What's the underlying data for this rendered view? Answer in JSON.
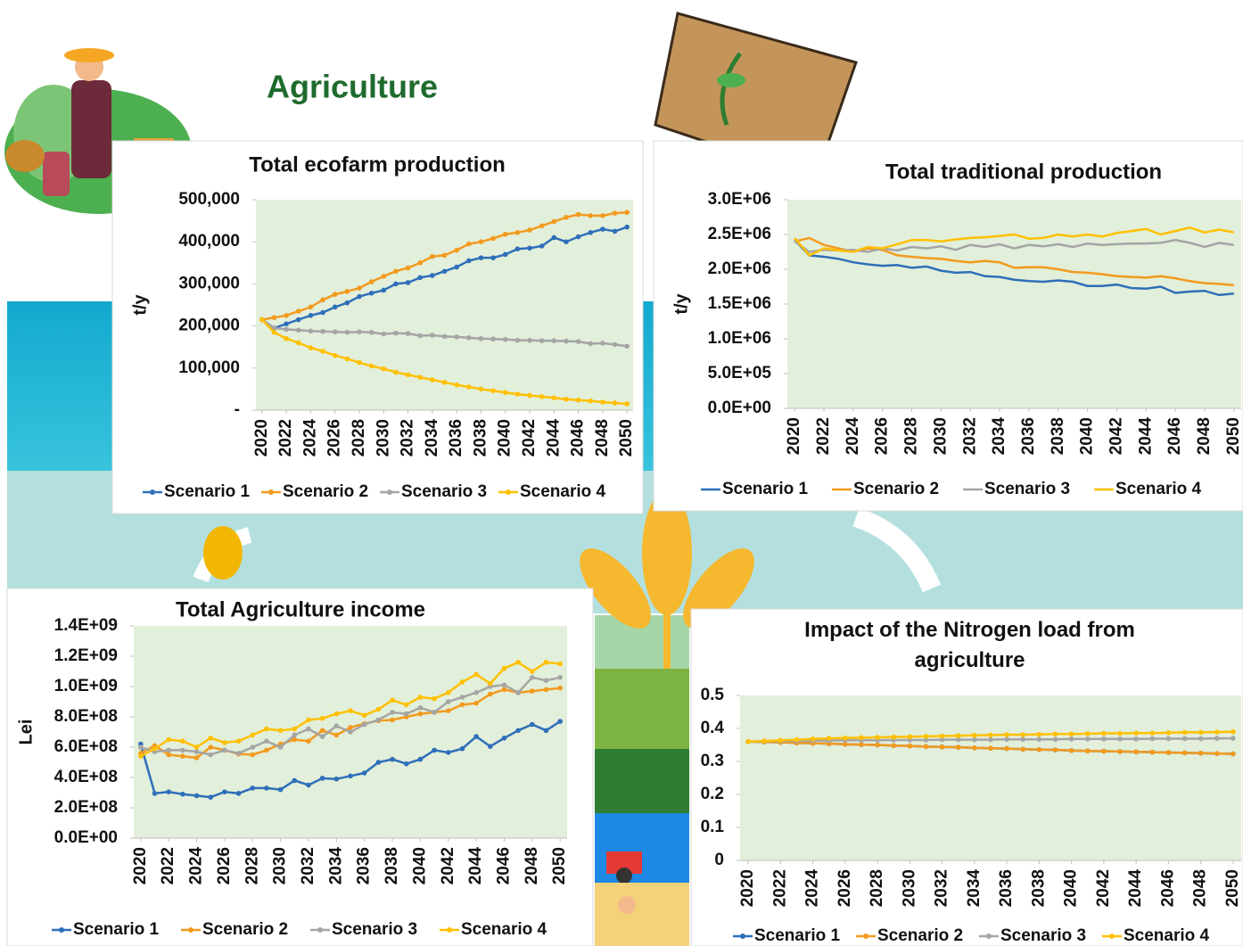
{
  "page_title": "Agriculture",
  "chart_data": [
    {
      "type": "line",
      "title": "Total ecofarm production",
      "y_label": "t/y",
      "markers": true,
      "grid": false,
      "legend": "bottom",
      "x": [
        2020,
        2021,
        2022,
        2023,
        2024,
        2025,
        2026,
        2027,
        2028,
        2029,
        2030,
        2031,
        2032,
        2033,
        2034,
        2035,
        2036,
        2037,
        2038,
        2039,
        2040,
        2041,
        2042,
        2043,
        2044,
        2045,
        2046,
        2047,
        2048,
        2049,
        2050
      ],
      "xlim": [
        2020,
        2050
      ],
      "xticks": [
        2020,
        2022,
        2024,
        2026,
        2028,
        2030,
        2032,
        2034,
        2036,
        2038,
        2040,
        2042,
        2044,
        2046,
        2048,
        2050
      ],
      "ylim": [
        0,
        500000
      ],
      "yticks": [
        {
          "value": 0,
          "label": "-"
        },
        {
          "value": 100000,
          "label": "100,000"
        },
        {
          "value": 200000,
          "label": "200,000"
        },
        {
          "value": 300000,
          "label": "300,000"
        },
        {
          "value": 400000,
          "label": "400,000"
        },
        {
          "value": 500000,
          "label": "500,000"
        }
      ],
      "series": [
        {
          "name": "Scenario 1",
          "color": "#2e6fba",
          "values": [
            215000,
            195000,
            205000,
            215000,
            225000,
            232000,
            245000,
            255000,
            270000,
            278000,
            285000,
            300000,
            303000,
            315000,
            320000,
            330000,
            340000,
            355000,
            362000,
            362000,
            370000,
            383000,
            385000,
            390000,
            410000,
            400000,
            412000,
            422000,
            430000,
            425000,
            435000
          ]
        },
        {
          "name": "Scenario 2",
          "color": "#f39a1e",
          "values": [
            215000,
            220000,
            225000,
            235000,
            245000,
            262000,
            275000,
            282000,
            290000,
            305000,
            318000,
            330000,
            338000,
            350000,
            365000,
            368000,
            380000,
            395000,
            400000,
            408000,
            418000,
            422000,
            428000,
            438000,
            448000,
            458000,
            465000,
            462000,
            462000,
            468000,
            470000
          ]
        },
        {
          "name": "Scenario 3",
          "color": "#a5a5a5",
          "values": [
            215000,
            195000,
            192000,
            190000,
            188000,
            187000,
            186000,
            185000,
            186000,
            185000,
            181000,
            183000,
            182000,
            177000,
            178000,
            175000,
            174000,
            172000,
            170000,
            169000,
            168000,
            166000,
            166000,
            165000,
            165000,
            164000,
            163000,
            158000,
            159000,
            156000,
            152000
          ]
        },
        {
          "name": "Scenario 4",
          "color": "#ffc000",
          "values": [
            215000,
            185000,
            170000,
            160000,
            148000,
            140000,
            130000,
            122000,
            113000,
            105000,
            98000,
            90000,
            84000,
            78000,
            72000,
            66000,
            60000,
            55000,
            50000,
            46000,
            42000,
            38000,
            35000,
            32000,
            29000,
            26000,
            24000,
            22000,
            19000,
            17000,
            15000
          ]
        }
      ]
    },
    {
      "type": "line",
      "title": "Total traditional production",
      "y_label": "t/y",
      "markers": false,
      "grid": false,
      "legend": "bottom",
      "x": [
        2020,
        2021,
        2022,
        2023,
        2024,
        2025,
        2026,
        2027,
        2028,
        2029,
        2030,
        2031,
        2032,
        2033,
        2034,
        2035,
        2036,
        2037,
        2038,
        2039,
        2040,
        2041,
        2042,
        2043,
        2044,
        2045,
        2046,
        2047,
        2048,
        2049,
        2050
      ],
      "xlim": [
        2020,
        2050
      ],
      "xticks": [
        2020,
        2022,
        2024,
        2026,
        2028,
        2030,
        2032,
        2034,
        2036,
        2038,
        2040,
        2042,
        2044,
        2046,
        2048,
        2050
      ],
      "ylim": [
        0,
        3000000
      ],
      "yticks": [
        {
          "value": 0,
          "label": "0.0E+00"
        },
        {
          "value": 500000,
          "label": "5.0E+05"
        },
        {
          "value": 1000000,
          "label": "1.0E+06"
        },
        {
          "value": 1500000,
          "label": "1.5E+06"
        },
        {
          "value": 2000000,
          "label": "2.0E+06"
        },
        {
          "value": 2500000,
          "label": "2.5E+06"
        },
        {
          "value": 3000000,
          "label": "3.0E+06"
        }
      ],
      "series": [
        {
          "name": "Scenario 1",
          "color": "#2e6fba",
          "values": [
            2420000,
            2200000,
            2180000,
            2150000,
            2100000,
            2070000,
            2050000,
            2060000,
            2020000,
            2040000,
            1980000,
            1950000,
            1960000,
            1900000,
            1890000,
            1850000,
            1830000,
            1820000,
            1840000,
            1820000,
            1760000,
            1760000,
            1780000,
            1730000,
            1720000,
            1750000,
            1660000,
            1680000,
            1690000,
            1630000,
            1650000
          ]
        },
        {
          "name": "Scenario 2",
          "color": "#f39a1e",
          "values": [
            2400000,
            2450000,
            2350000,
            2300000,
            2250000,
            2300000,
            2280000,
            2200000,
            2180000,
            2160000,
            2150000,
            2120000,
            2100000,
            2120000,
            2100000,
            2020000,
            2030000,
            2030000,
            2000000,
            1960000,
            1950000,
            1930000,
            1900000,
            1890000,
            1880000,
            1900000,
            1870000,
            1830000,
            1800000,
            1790000,
            1770000
          ]
        },
        {
          "name": "Scenario 3",
          "color": "#a5a5a5",
          "values": [
            2400000,
            2250000,
            2280000,
            2270000,
            2280000,
            2250000,
            2300000,
            2270000,
            2320000,
            2300000,
            2330000,
            2280000,
            2350000,
            2320000,
            2360000,
            2300000,
            2350000,
            2330000,
            2360000,
            2320000,
            2370000,
            2350000,
            2360000,
            2370000,
            2370000,
            2380000,
            2420000,
            2380000,
            2320000,
            2380000,
            2350000
          ]
        },
        {
          "name": "Scenario 4",
          "color": "#ffc000",
          "values": [
            2450000,
            2200000,
            2300000,
            2270000,
            2250000,
            2320000,
            2300000,
            2360000,
            2420000,
            2420000,
            2400000,
            2430000,
            2450000,
            2460000,
            2480000,
            2500000,
            2440000,
            2450000,
            2500000,
            2470000,
            2500000,
            2470000,
            2520000,
            2550000,
            2580000,
            2500000,
            2550000,
            2600000,
            2530000,
            2570000,
            2530000
          ]
        }
      ]
    },
    {
      "type": "line",
      "title": "Total Agriculture income",
      "y_label": "Lei",
      "markers": true,
      "grid": false,
      "legend": "bottom",
      "x": [
        2020,
        2021,
        2022,
        2023,
        2024,
        2025,
        2026,
        2027,
        2028,
        2029,
        2030,
        2031,
        2032,
        2033,
        2034,
        2035,
        2036,
        2037,
        2038,
        2039,
        2040,
        2041,
        2042,
        2043,
        2044,
        2045,
        2046,
        2047,
        2048,
        2049,
        2050
      ],
      "xlim": [
        2020,
        2050
      ],
      "xticks": [
        2020,
        2022,
        2024,
        2026,
        2028,
        2030,
        2032,
        2034,
        2036,
        2038,
        2040,
        2042,
        2044,
        2046,
        2048,
        2050
      ],
      "ylim": [
        0,
        1400000000
      ],
      "yticks": [
        {
          "value": 0,
          "label": "0.0E+00"
        },
        {
          "value": 200000000,
          "label": "2.0E+08"
        },
        {
          "value": 400000000,
          "label": "4.0E+08"
        },
        {
          "value": 600000000,
          "label": "6.0E+08"
        },
        {
          "value": 800000000,
          "label": "8.0E+08"
        },
        {
          "value": 1000000000,
          "label": "1.0E+09"
        },
        {
          "value": 1200000000,
          "label": "1.2E+09"
        },
        {
          "value": 1400000000,
          "label": "1.4E+09"
        }
      ],
      "series": [
        {
          "name": "Scenario 1",
          "color": "#2e6fba",
          "values": [
            620000000,
            295000000,
            305000000,
            290000000,
            280000000,
            270000000,
            305000000,
            295000000,
            330000000,
            330000000,
            320000000,
            380000000,
            350000000,
            395000000,
            390000000,
            410000000,
            430000000,
            500000000,
            520000000,
            490000000,
            520000000,
            580000000,
            565000000,
            590000000,
            670000000,
            605000000,
            660000000,
            710000000,
            750000000,
            710000000,
            770000000
          ]
        },
        {
          "name": "Scenario 2",
          "color": "#f39a1e",
          "values": [
            560000000,
            610000000,
            550000000,
            540000000,
            530000000,
            600000000,
            580000000,
            555000000,
            550000000,
            580000000,
            620000000,
            650000000,
            640000000,
            710000000,
            680000000,
            730000000,
            755000000,
            775000000,
            780000000,
            800000000,
            820000000,
            830000000,
            840000000,
            880000000,
            890000000,
            950000000,
            980000000,
            960000000,
            970000000,
            980000000,
            990000000
          ]
        },
        {
          "name": "Scenario 3",
          "color": "#a5a5a5",
          "values": [
            600000000,
            570000000,
            580000000,
            580000000,
            570000000,
            550000000,
            580000000,
            560000000,
            600000000,
            640000000,
            600000000,
            680000000,
            720000000,
            670000000,
            740000000,
            700000000,
            750000000,
            780000000,
            830000000,
            820000000,
            860000000,
            830000000,
            900000000,
            930000000,
            960000000,
            1000000000,
            1010000000,
            960000000,
            1060000000,
            1040000000,
            1060000000
          ]
        },
        {
          "name": "Scenario 4",
          "color": "#ffc000",
          "values": [
            540000000,
            590000000,
            650000000,
            640000000,
            600000000,
            660000000,
            630000000,
            640000000,
            680000000,
            720000000,
            710000000,
            720000000,
            780000000,
            790000000,
            820000000,
            840000000,
            810000000,
            850000000,
            910000000,
            880000000,
            930000000,
            920000000,
            960000000,
            1030000000,
            1080000000,
            1020000000,
            1120000000,
            1160000000,
            1100000000,
            1160000000,
            1150000000
          ]
        }
      ]
    },
    {
      "type": "line",
      "title": "Impact of the Nitrogen load from agriculture",
      "markers": true,
      "grid": false,
      "legend": "bottom",
      "x": [
        2020,
        2021,
        2022,
        2023,
        2024,
        2025,
        2026,
        2027,
        2028,
        2029,
        2030,
        2031,
        2032,
        2033,
        2034,
        2035,
        2036,
        2037,
        2038,
        2039,
        2040,
        2041,
        2042,
        2043,
        2044,
        2045,
        2046,
        2047,
        2048,
        2049,
        2050
      ],
      "xlim": [
        2020,
        2050
      ],
      "xticks": [
        2020,
        2022,
        2024,
        2026,
        2028,
        2030,
        2032,
        2034,
        2036,
        2038,
        2040,
        2042,
        2044,
        2046,
        2048,
        2050
      ],
      "ylim": [
        0,
        0.5
      ],
      "yticks": [
        0,
        0.1,
        0.2,
        0.3,
        0.4,
        0.5
      ],
      "series": [
        {
          "name": "Scenario 1",
          "color": "#2e6fba",
          "values": [
            0.36,
            0.359,
            0.358,
            0.356,
            0.355,
            0.354,
            0.352,
            0.351,
            0.35,
            0.348,
            0.347,
            0.345,
            0.344,
            0.343,
            0.341,
            0.34,
            0.339,
            0.337,
            0.336,
            0.335,
            0.333,
            0.332,
            0.331,
            0.33,
            0.329,
            0.328,
            0.327,
            0.326,
            0.325,
            0.324,
            0.323
          ]
        },
        {
          "name": "Scenario 2",
          "color": "#f39a1e",
          "values": [
            0.36,
            0.359,
            0.358,
            0.356,
            0.355,
            0.354,
            0.352,
            0.351,
            0.35,
            0.348,
            0.347,
            0.345,
            0.344,
            0.343,
            0.341,
            0.34,
            0.339,
            0.337,
            0.336,
            0.335,
            0.333,
            0.332,
            0.331,
            0.33,
            0.329,
            0.328,
            0.327,
            0.326,
            0.325,
            0.324,
            0.323
          ]
        },
        {
          "name": "Scenario 3",
          "color": "#a5a5a5",
          "values": [
            0.36,
            0.361,
            0.362,
            0.362,
            0.363,
            0.363,
            0.364,
            0.364,
            0.364,
            0.365,
            0.365,
            0.365,
            0.366,
            0.366,
            0.366,
            0.366,
            0.367,
            0.367,
            0.367,
            0.367,
            0.368,
            0.368,
            0.368,
            0.368,
            0.368,
            0.369,
            0.369,
            0.369,
            0.369,
            0.37,
            0.37
          ]
        },
        {
          "name": "Scenario 4",
          "color": "#ffc000",
          "values": [
            0.36,
            0.362,
            0.364,
            0.366,
            0.368,
            0.37,
            0.371,
            0.372,
            0.373,
            0.374,
            0.375,
            0.376,
            0.377,
            0.378,
            0.379,
            0.38,
            0.381,
            0.381,
            0.382,
            0.383,
            0.383,
            0.384,
            0.385,
            0.385,
            0.386,
            0.386,
            0.387,
            0.388,
            0.388,
            0.389,
            0.39
          ]
        }
      ]
    }
  ]
}
